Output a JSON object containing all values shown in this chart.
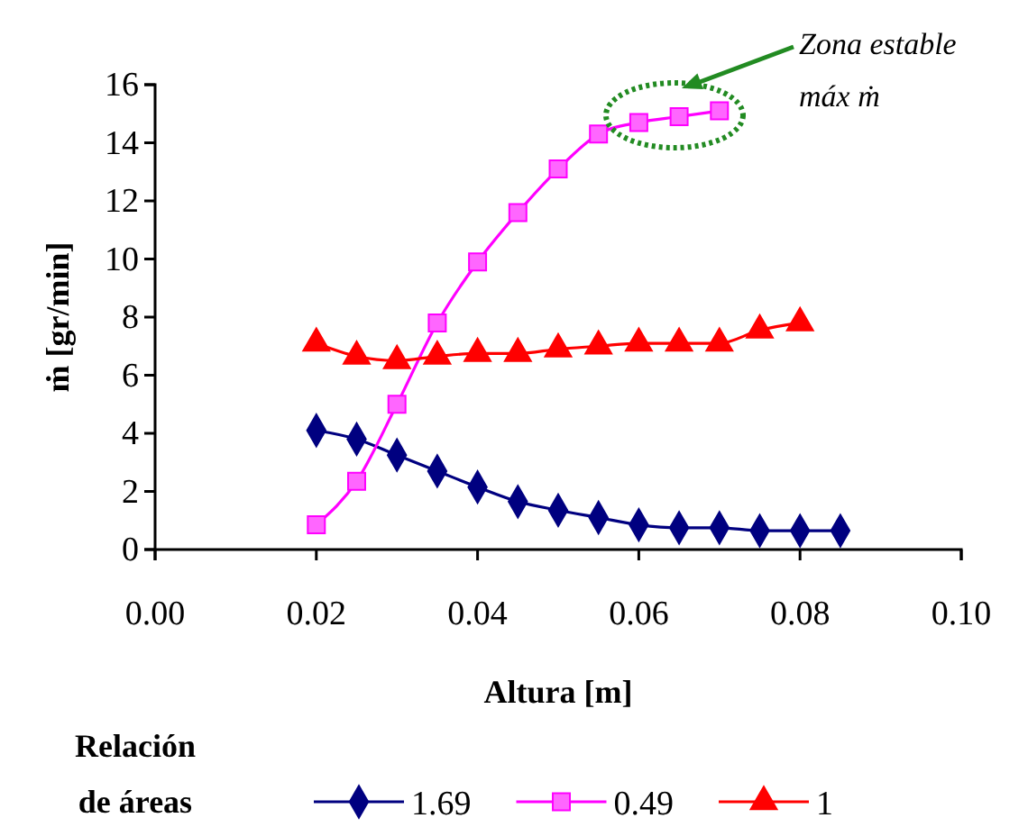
{
  "chart_data": {
    "type": "line",
    "xlabel": "Altura [m]",
    "ylabel": "ṁ  [gr/min]",
    "legend_title": "Relación\nde áreas",
    "legend": "bottom",
    "grid": false,
    "xlim": [
      0,
      0.1
    ],
    "xticks": [
      {
        "value": 0,
        "label": "0.00"
      },
      {
        "value": 0.02,
        "label": "0.02"
      },
      {
        "value": 0.04,
        "label": "0.04"
      },
      {
        "value": 0.06,
        "label": "0.06"
      },
      {
        "value": 0.08,
        "label": "0.08"
      },
      {
        "value": 0.1,
        "label": "0.10"
      }
    ],
    "ylim": [
      0,
      16
    ],
    "yticks": [
      0,
      2,
      4,
      6,
      8,
      10,
      12,
      14,
      16
    ],
    "series": [
      {
        "name": "1.69",
        "color": "#000080",
        "marker": "diamond",
        "x": [
          0.02,
          0.025,
          0.03,
          0.035,
          0.04,
          0.045,
          0.05,
          0.055,
          0.06,
          0.065,
          0.07,
          0.075,
          0.08,
          0.085
        ],
        "values": [
          4.1,
          3.8,
          3.25,
          2.7,
          2.15,
          1.65,
          1.35,
          1.1,
          0.85,
          0.75,
          0.75,
          0.65,
          0.65,
          0.65
        ]
      },
      {
        "name": "0.49",
        "color": "#ff00ff",
        "marker": "square",
        "x": [
          0.02,
          0.025,
          0.03,
          0.035,
          0.04,
          0.045,
          0.05,
          0.055,
          0.06,
          0.065,
          0.07
        ],
        "values": [
          0.85,
          2.35,
          5.0,
          7.8,
          9.9,
          11.6,
          13.1,
          14.3,
          14.7,
          14.9,
          15.1
        ]
      },
      {
        "name": "1",
        "color": "#ff0000",
        "marker": "triangle",
        "x": [
          0.02,
          0.025,
          0.03,
          0.035,
          0.04,
          0.045,
          0.05,
          0.055,
          0.06,
          0.065,
          0.07,
          0.075,
          0.08
        ],
        "values": [
          7.1,
          6.65,
          6.5,
          6.65,
          6.75,
          6.75,
          6.9,
          7.0,
          7.1,
          7.1,
          7.1,
          7.55,
          7.8
        ]
      }
    ],
    "annotations": [
      "Zona estable\nmáx ṁ"
    ]
  }
}
